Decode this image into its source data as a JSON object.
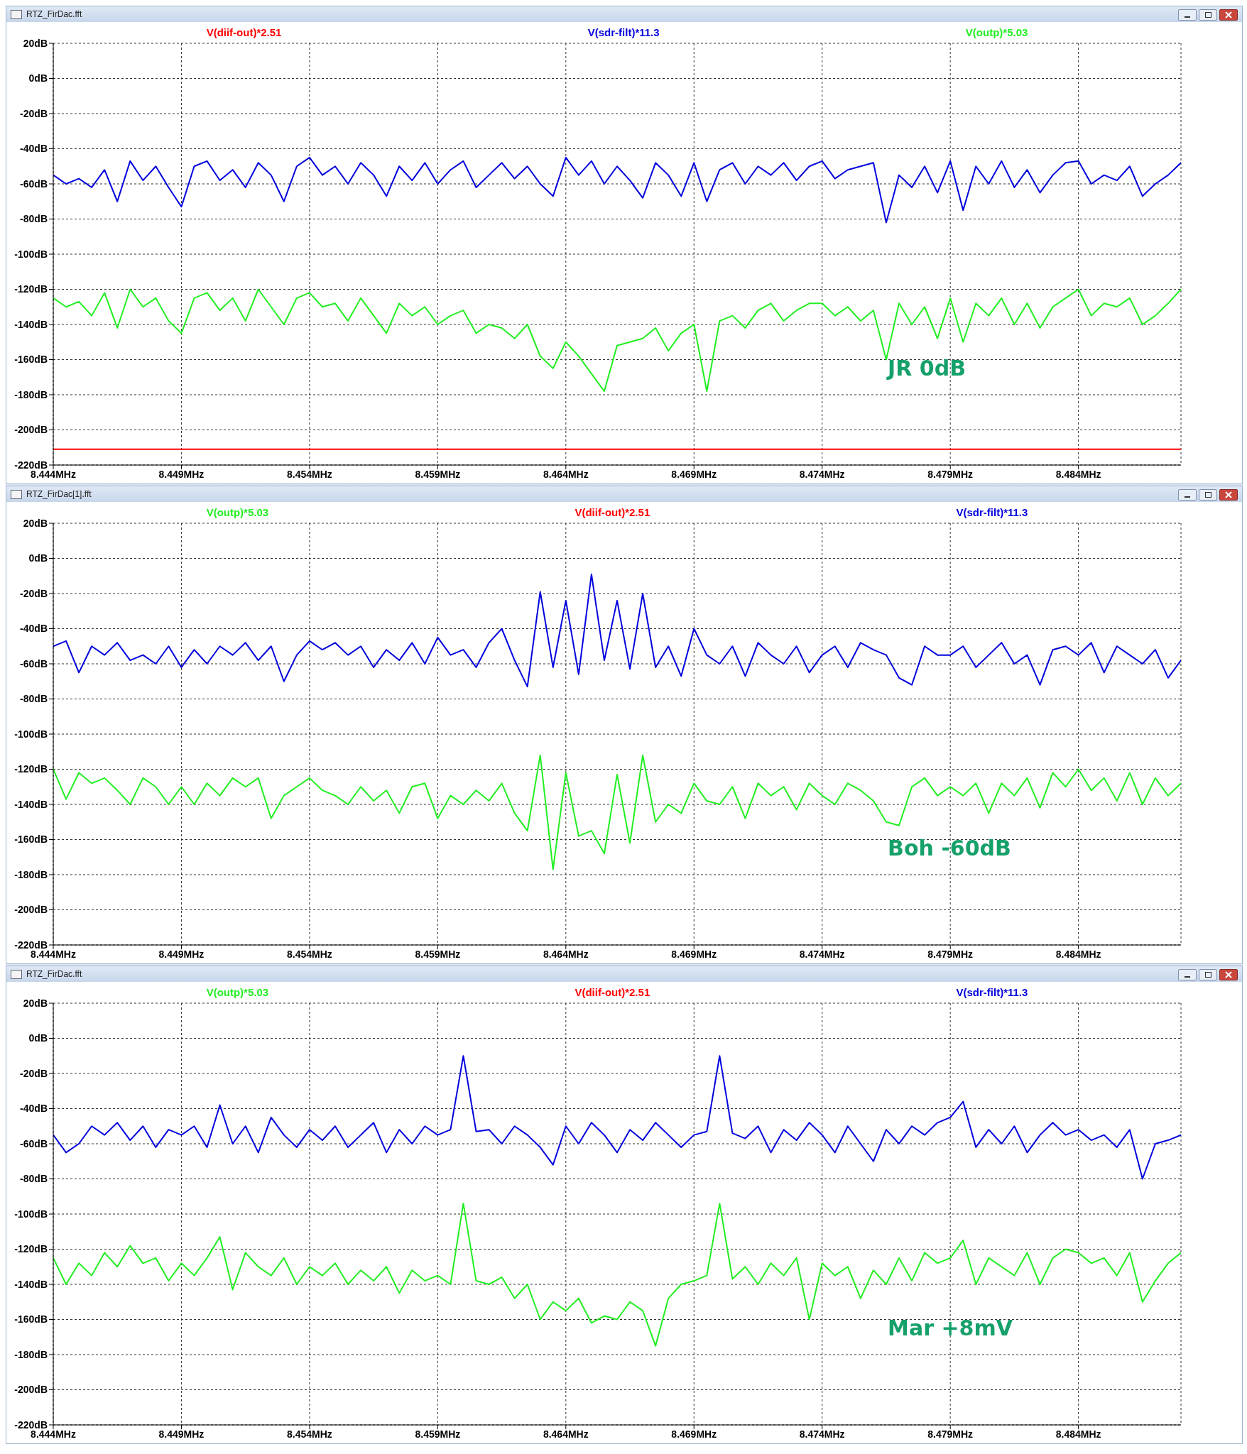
{
  "chart_data": [
    {
      "type": "line",
      "title": "RTZ_FirDac.fft",
      "legend": "top",
      "grid": true,
      "marker": "none",
      "line_style": "solid",
      "xlim": [
        8.444,
        8.488
      ],
      "ylim": [
        -220,
        20
      ],
      "xticks": [
        {
          "value": 8.444,
          "label": "8.444MHz"
        },
        {
          "value": 8.449,
          "label": "8.449MHz"
        },
        {
          "value": 8.454,
          "label": "8.454MHz"
        },
        {
          "value": 8.459,
          "label": "8.459MHz"
        },
        {
          "value": 8.464,
          "label": "8.464MHz"
        },
        {
          "value": 8.469,
          "label": "8.469MHz"
        },
        {
          "value": 8.474,
          "label": "8.474MHz"
        },
        {
          "value": 8.479,
          "label": "8.479MHz"
        },
        {
          "value": 8.484,
          "label": "8.484MHz"
        }
      ],
      "yticks": [
        {
          "value": 20,
          "label": "20dB"
        },
        {
          "value": 0,
          "label": "0dB"
        },
        {
          "value": -20,
          "label": "-20dB"
        },
        {
          "value": -40,
          "label": "-40dB"
        },
        {
          "value": -60,
          "label": "-60dB"
        },
        {
          "value": -80,
          "label": "-80dB"
        },
        {
          "value": -100,
          "label": "-100dB"
        },
        {
          "value": -120,
          "label": "-120dB"
        },
        {
          "value": -140,
          "label": "-140dB"
        },
        {
          "value": -160,
          "label": "-160dB"
        },
        {
          "value": -180,
          "label": "-180dB"
        },
        {
          "value": -200,
          "label": "-200dB"
        },
        {
          "value": -220,
          "label": "-220dB"
        }
      ],
      "x": [
        8.444,
        8.4445,
        8.445,
        8.4455,
        8.446,
        8.4465,
        8.447,
        8.4475,
        8.448,
        8.4485,
        8.449,
        8.4495,
        8.45,
        8.4505,
        8.451,
        8.4515,
        8.452,
        8.4525,
        8.453,
        8.4535,
        8.454,
        8.4545,
        8.455,
        8.4555,
        8.456,
        8.4565,
        8.457,
        8.4575,
        8.458,
        8.4585,
        8.459,
        8.4595,
        8.46,
        8.4605,
        8.461,
        8.4615,
        8.462,
        8.4625,
        8.463,
        8.4635,
        8.464,
        8.4645,
        8.465,
        8.4655,
        8.466,
        8.4665,
        8.467,
        8.4675,
        8.468,
        8.4685,
        8.469,
        8.4695,
        8.47,
        8.4705,
        8.471,
        8.4715,
        8.472,
        8.4725,
        8.473,
        8.4735,
        8.474,
        8.4745,
        8.475,
        8.4755,
        8.476,
        8.4765,
        8.477,
        8.4775,
        8.478,
        8.4785,
        8.479,
        8.4795,
        8.48,
        8.4805,
        8.481,
        8.4815,
        8.482,
        8.4825,
        8.483,
        8.4835,
        8.484,
        8.4845,
        8.485,
        8.4855,
        8.486,
        8.4865,
        8.487,
        8.4875,
        8.488
      ],
      "series": [
        {
          "name": "V(diif-out)*2.51",
          "color": "#ff0000",
          "x": [
            8.444,
            8.488
          ],
          "values": [
            -211,
            -211
          ]
        },
        {
          "name": "V(sdr-filt)*11.3",
          "color": "#0000dd",
          "values": [
            -55,
            -60,
            -57,
            -62,
            -52,
            -70,
            -47,
            -58,
            -50,
            -62,
            -73,
            -50,
            -47,
            -58,
            -52,
            -62,
            -48,
            -55,
            -70,
            -50,
            -45,
            -55,
            -50,
            -60,
            -48,
            -55,
            -67,
            -50,
            -58,
            -48,
            -60,
            -52,
            -47,
            -62,
            -55,
            -48,
            -57,
            -50,
            -60,
            -67,
            -45,
            -55,
            -47,
            -60,
            -50,
            -58,
            -68,
            -48,
            -55,
            -67,
            -48,
            -70,
            -52,
            -48,
            -60,
            -50,
            -55,
            -48,
            -58,
            -50,
            -47,
            -57,
            -52,
            -50,
            -48,
            -82,
            -55,
            -62,
            -50,
            -65,
            -47,
            -75,
            -50,
            -60,
            -47,
            -62,
            -52,
            -65,
            -55,
            -48,
            -47,
            -60,
            -55,
            -58,
            -50,
            -67,
            -60,
            -55,
            -48
          ]
        },
        {
          "name": "V(outp)*5.03",
          "color": "#22ee22",
          "values": [
            -125,
            -130,
            -127,
            -135,
            -122,
            -142,
            -120,
            -130,
            -125,
            -138,
            -145,
            -125,
            -122,
            -132,
            -125,
            -138,
            -120,
            -130,
            -140,
            -125,
            -122,
            -130,
            -128,
            -138,
            -125,
            -135,
            -145,
            -128,
            -135,
            -130,
            -140,
            -135,
            -132,
            -145,
            -140,
            -142,
            -148,
            -140,
            -158,
            -165,
            -150,
            -158,
            -168,
            -178,
            -152,
            -150,
            -148,
            -142,
            -155,
            -145,
            -140,
            -178,
            -138,
            -135,
            -142,
            -132,
            -128,
            -138,
            -132,
            -128,
            -128,
            -135,
            -130,
            -138,
            -132,
            -160,
            -128,
            -140,
            -130,
            -148,
            -125,
            -150,
            -128,
            -135,
            -125,
            -140,
            -128,
            -142,
            -130,
            -125,
            -120,
            -135,
            -128,
            -130,
            -125,
            -140,
            -135,
            -128,
            -120
          ]
        }
      ],
      "annotations": [
        "JR 0dB"
      ]
    },
    {
      "type": "line",
      "title": "RTZ_FirDac[1].fft",
      "legend": "top",
      "grid": true,
      "marker": "none",
      "line_style": "solid",
      "xlim": [
        8.444,
        8.488
      ],
      "ylim": [
        -220,
        20
      ],
      "xticks": [
        {
          "value": 8.444,
          "label": "8.444MHz"
        },
        {
          "value": 8.449,
          "label": "8.449MHz"
        },
        {
          "value": 8.454,
          "label": "8.454MHz"
        },
        {
          "value": 8.459,
          "label": "8.459MHz"
        },
        {
          "value": 8.464,
          "label": "8.464MHz"
        },
        {
          "value": 8.469,
          "label": "8.469MHz"
        },
        {
          "value": 8.474,
          "label": "8.474MHz"
        },
        {
          "value": 8.479,
          "label": "8.479MHz"
        },
        {
          "value": 8.484,
          "label": "8.484MHz"
        }
      ],
      "yticks": [
        {
          "value": 20,
          "label": "20dB"
        },
        {
          "value": 0,
          "label": "0dB"
        },
        {
          "value": -20,
          "label": "-20dB"
        },
        {
          "value": -40,
          "label": "-40dB"
        },
        {
          "value": -60,
          "label": "-60dB"
        },
        {
          "value": -80,
          "label": "-80dB"
        },
        {
          "value": -100,
          "label": "-100dB"
        },
        {
          "value": -120,
          "label": "-120dB"
        },
        {
          "value": -140,
          "label": "-140dB"
        },
        {
          "value": -160,
          "label": "-160dB"
        },
        {
          "value": -180,
          "label": "-180dB"
        },
        {
          "value": -200,
          "label": "-200dB"
        },
        {
          "value": -220,
          "label": "-220dB"
        }
      ],
      "x": [
        8.444,
        8.4445,
        8.445,
        8.4455,
        8.446,
        8.4465,
        8.447,
        8.4475,
        8.448,
        8.4485,
        8.449,
        8.4495,
        8.45,
        8.4505,
        8.451,
        8.4515,
        8.452,
        8.4525,
        8.453,
        8.4535,
        8.454,
        8.4545,
        8.455,
        8.4555,
        8.456,
        8.4565,
        8.457,
        8.4575,
        8.458,
        8.4585,
        8.459,
        8.4595,
        8.46,
        8.4605,
        8.461,
        8.4615,
        8.462,
        8.4625,
        8.463,
        8.4635,
        8.464,
        8.4645,
        8.465,
        8.4655,
        8.466,
        8.4665,
        8.467,
        8.4675,
        8.468,
        8.4685,
        8.469,
        8.4695,
        8.47,
        8.4705,
        8.471,
        8.4715,
        8.472,
        8.4725,
        8.473,
        8.4735,
        8.474,
        8.4745,
        8.475,
        8.4755,
        8.476,
        8.4765,
        8.477,
        8.4775,
        8.478,
        8.4785,
        8.479,
        8.4795,
        8.48,
        8.4805,
        8.481,
        8.4815,
        8.482,
        8.4825,
        8.483,
        8.4835,
        8.484,
        8.4845,
        8.485,
        8.4855,
        8.486,
        8.4865,
        8.487,
        8.4875,
        8.488
      ],
      "series": [
        {
          "name": "V(outp)*5.03",
          "color": "#22ee22",
          "values": [
            -120,
            -137,
            -122,
            -128,
            -125,
            -132,
            -140,
            -125,
            -130,
            -140,
            -130,
            -140,
            -128,
            -135,
            -125,
            -130,
            -125,
            -148,
            -135,
            -130,
            -125,
            -132,
            -135,
            -140,
            -130,
            -138,
            -132,
            -145,
            -130,
            -128,
            -148,
            -135,
            -140,
            -132,
            -138,
            -128,
            -145,
            -155,
            -112,
            -177,
            -122,
            -158,
            -155,
            -168,
            -123,
            -162,
            -112,
            -150,
            -140,
            -145,
            -128,
            -138,
            -140,
            -130,
            -148,
            -128,
            -135,
            -130,
            -143,
            -128,
            -135,
            -140,
            -128,
            -132,
            -138,
            -150,
            -152,
            -130,
            -125,
            -135,
            -130,
            -135,
            -128,
            -145,
            -128,
            -135,
            -125,
            -142,
            -122,
            -130,
            -120,
            -132,
            -125,
            -138,
            -122,
            -140,
            -125,
            -135,
            -128
          ]
        },
        {
          "name": "V(diif-out)*2.51",
          "color": "#ff0000",
          "values": [
            null,
            null,
            null,
            null,
            null,
            null,
            null,
            null,
            null,
            null,
            null,
            null,
            null,
            null,
            null,
            null,
            null,
            null,
            null,
            null,
            null,
            null,
            null,
            null,
            null,
            null,
            null,
            null,
            null,
            null,
            null,
            null,
            null,
            null,
            null,
            null,
            null,
            null,
            null,
            null,
            null,
            null,
            null,
            null,
            null,
            null,
            null,
            null,
            null,
            null,
            null,
            null,
            null,
            null,
            null,
            null,
            null,
            null,
            null,
            null,
            null,
            null,
            null,
            null,
            null,
            null,
            null,
            null,
            null,
            null,
            null,
            null,
            null,
            null,
            null,
            null,
            null,
            null,
            null,
            null,
            null,
            null,
            null,
            null,
            null,
            null,
            null,
            null,
            null
          ]
        },
        {
          "name": "V(sdr-filt)*11.3",
          "color": "#0000dd",
          "values": [
            -50,
            -47,
            -65,
            -50,
            -55,
            -48,
            -58,
            -55,
            -60,
            -50,
            -62,
            -52,
            -60,
            -50,
            -55,
            -48,
            -58,
            -50,
            -70,
            -55,
            -47,
            -52,
            -48,
            -55,
            -50,
            -62,
            -52,
            -58,
            -48,
            -60,
            -45,
            -55,
            -52,
            -62,
            -48,
            -40,
            -58,
            -73,
            -19,
            -62,
            -24,
            -66,
            -9,
            -58,
            -24,
            -63,
            -20,
            -62,
            -50,
            -67,
            -40,
            -55,
            -60,
            -50,
            -67,
            -48,
            -55,
            -60,
            -50,
            -65,
            -55,
            -50,
            -62,
            -48,
            -52,
            -55,
            -68,
            -72,
            -50,
            -55,
            -55,
            -50,
            -62,
            -55,
            -48,
            -60,
            -55,
            -72,
            -52,
            -50,
            -55,
            -48,
            -65,
            -50,
            -55,
            -60,
            -52,
            -68,
            -58
          ]
        }
      ],
      "annotations": [
        "Boh -60dB"
      ]
    },
    {
      "type": "line",
      "title": "RTZ_FirDac.fft",
      "legend": "top",
      "grid": true,
      "marker": "none",
      "line_style": "solid",
      "xlim": [
        8.444,
        8.488
      ],
      "ylim": [
        -220,
        20
      ],
      "xticks": [
        {
          "value": 8.444,
          "label": "8.444MHz"
        },
        {
          "value": 8.449,
          "label": "8.449MHz"
        },
        {
          "value": 8.454,
          "label": "8.454MHz"
        },
        {
          "value": 8.459,
          "label": "8.459MHz"
        },
        {
          "value": 8.464,
          "label": "8.464MHz"
        },
        {
          "value": 8.469,
          "label": "8.469MHz"
        },
        {
          "value": 8.474,
          "label": "8.474MHz"
        },
        {
          "value": 8.479,
          "label": "8.479MHz"
        },
        {
          "value": 8.484,
          "label": "8.484MHz"
        }
      ],
      "yticks": [
        {
          "value": 20,
          "label": "20dB"
        },
        {
          "value": 0,
          "label": "0dB"
        },
        {
          "value": -20,
          "label": "-20dB"
        },
        {
          "value": -40,
          "label": "-40dB"
        },
        {
          "value": -60,
          "label": "-60dB"
        },
        {
          "value": -80,
          "label": "-80dB"
        },
        {
          "value": -100,
          "label": "-100dB"
        },
        {
          "value": -120,
          "label": "-120dB"
        },
        {
          "value": -140,
          "label": "-140dB"
        },
        {
          "value": -160,
          "label": "-160dB"
        },
        {
          "value": -180,
          "label": "-180dB"
        },
        {
          "value": -200,
          "label": "-200dB"
        },
        {
          "value": -220,
          "label": "-220dB"
        }
      ],
      "x": [
        8.444,
        8.4445,
        8.445,
        8.4455,
        8.446,
        8.4465,
        8.447,
        8.4475,
        8.448,
        8.4485,
        8.449,
        8.4495,
        8.45,
        8.4505,
        8.451,
        8.4515,
        8.452,
        8.4525,
        8.453,
        8.4535,
        8.454,
        8.4545,
        8.455,
        8.4555,
        8.456,
        8.4565,
        8.457,
        8.4575,
        8.458,
        8.4585,
        8.459,
        8.4595,
        8.46,
        8.4605,
        8.461,
        8.4615,
        8.462,
        8.4625,
        8.463,
        8.4635,
        8.464,
        8.4645,
        8.465,
        8.4655,
        8.466,
        8.4665,
        8.467,
        8.4675,
        8.468,
        8.4685,
        8.469,
        8.4695,
        8.47,
        8.4705,
        8.471,
        8.4715,
        8.472,
        8.4725,
        8.473,
        8.4735,
        8.474,
        8.4745,
        8.475,
        8.4755,
        8.476,
        8.4765,
        8.477,
        8.4775,
        8.478,
        8.4785,
        8.479,
        8.4795,
        8.48,
        8.4805,
        8.481,
        8.4815,
        8.482,
        8.4825,
        8.483,
        8.4835,
        8.484,
        8.4845,
        8.485,
        8.4855,
        8.486,
        8.4865,
        8.487,
        8.4875,
        8.488
      ],
      "series": [
        {
          "name": "V(outp)*5.03",
          "color": "#22ee22",
          "values": [
            -125,
            -140,
            -128,
            -135,
            -122,
            -130,
            -118,
            -128,
            -125,
            -138,
            -128,
            -135,
            -125,
            -113,
            -143,
            -122,
            -130,
            -135,
            -125,
            -140,
            -130,
            -135,
            -128,
            -140,
            -132,
            -138,
            -130,
            -145,
            -132,
            -138,
            -135,
            -140,
            -94,
            -138,
            -140,
            -136,
            -148,
            -140,
            -160,
            -150,
            -155,
            -148,
            -162,
            -158,
            -160,
            -150,
            -155,
            -175,
            -148,
            -140,
            -138,
            -135,
            -94,
            -137,
            -130,
            -140,
            -128,
            -135,
            -125,
            -160,
            -128,
            -135,
            -130,
            -148,
            -132,
            -140,
            -125,
            -138,
            -122,
            -128,
            -125,
            -115,
            -140,
            -125,
            -130,
            -135,
            -122,
            -140,
            -125,
            -120,
            -122,
            -128,
            -125,
            -135,
            -122,
            -150,
            -138,
            -128,
            -122
          ]
        },
        {
          "name": "V(diif-out)*2.51",
          "color": "#ff0000",
          "values": [
            null,
            null,
            null,
            null,
            null,
            null,
            null,
            null,
            null,
            null,
            null,
            null,
            null,
            null,
            null,
            null,
            null,
            null,
            null,
            null,
            null,
            null,
            null,
            null,
            null,
            null,
            null,
            null,
            null,
            null,
            null,
            null,
            null,
            null,
            null,
            null,
            null,
            null,
            null,
            null,
            null,
            null,
            null,
            null,
            null,
            null,
            null,
            null,
            null,
            null,
            null,
            null,
            null,
            null,
            null,
            null,
            null,
            null,
            null,
            null,
            null,
            null,
            null,
            null,
            null,
            null,
            null,
            null,
            null,
            null,
            null,
            null,
            null,
            null,
            null,
            null,
            null,
            null,
            null,
            null,
            null,
            null,
            null,
            null,
            null,
            null,
            null,
            null,
            null
          ]
        },
        {
          "name": "V(sdr-filt)*11.3",
          "color": "#0000dd",
          "values": [
            -55,
            -65,
            -60,
            -50,
            -55,
            -48,
            -58,
            -50,
            -62,
            -52,
            -55,
            -50,
            -62,
            -38,
            -60,
            -50,
            -65,
            -45,
            -55,
            -62,
            -52,
            -58,
            -50,
            -62,
            -55,
            -48,
            -65,
            -52,
            -60,
            -50,
            -55,
            -52,
            -10,
            -53,
            -52,
            -60,
            -50,
            -55,
            -62,
            -72,
            -50,
            -60,
            -48,
            -55,
            -65,
            -52,
            -58,
            -48,
            -55,
            -62,
            -55,
            -53,
            -10,
            -54,
            -57,
            -50,
            -65,
            -52,
            -58,
            -48,
            -55,
            -65,
            -50,
            -60,
            -70,
            -52,
            -60,
            -50,
            -55,
            -48,
            -45,
            -36,
            -62,
            -52,
            -60,
            -50,
            -65,
            -55,
            -48,
            -55,
            -52,
            -58,
            -55,
            -62,
            -52,
            -80,
            -60,
            -58,
            -55
          ]
        }
      ],
      "annotations": [
        "Mar +8mV"
      ]
    }
  ]
}
